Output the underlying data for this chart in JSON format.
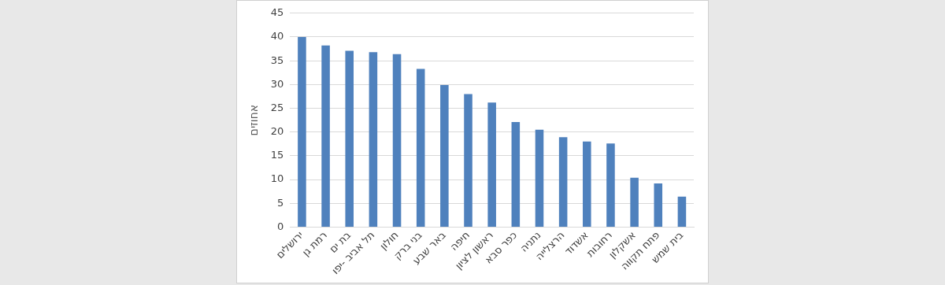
{
  "chart_data": {
    "type": "bar",
    "ylabel": "אחוזים",
    "categories": [
      "ירושלים",
      "רמת גן",
      "בת ים",
      "תל אביב -יפו",
      "חולון",
      "בני ברק",
      "באר שבע",
      "חיפה",
      "ראשון לציון",
      "כפר סבא",
      "נתניה",
      "הרצלייה",
      "אשדוד",
      "רחובות",
      "אשקלון",
      "פתח תקווה",
      "בית שמש"
    ],
    "values": [
      40,
      38.2,
      37.1,
      36.8,
      36.4,
      33.3,
      29.9,
      28,
      26.2,
      22.1,
      20.5,
      18.9,
      18,
      17.6,
      10.4,
      9.2,
      6.4
    ],
    "color": "#4f81bd",
    "ylim": [
      0,
      45
    ],
    "yticks": [
      0,
      5,
      10,
      15,
      20,
      25,
      30,
      35,
      40,
      45
    ],
    "grid": "y"
  }
}
